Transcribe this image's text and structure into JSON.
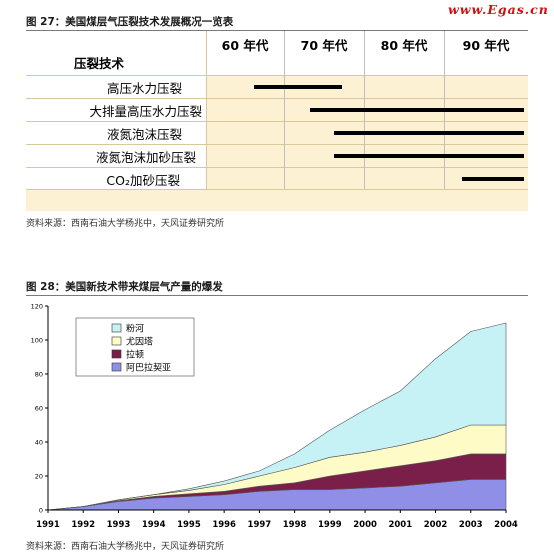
{
  "watermark": "www.Egas.cn",
  "table_figure": {
    "title": "图 27：美国煤层气压裂技术发展概况一览表",
    "column_header": "压裂技术",
    "decades": [
      "60 年代",
      "70 年代",
      "80 年代",
      "90 年代"
    ],
    "rows": [
      {
        "label": "高压水力压裂",
        "start": 1966,
        "end": 1976
      },
      {
        "label": "大排量高压水力压裂",
        "start": 1973,
        "end": 1999
      },
      {
        "label": "液氮泡沫压裂",
        "start": 1976,
        "end": 1999
      },
      {
        "label": "液氮泡沫加砂压裂",
        "start": 1976,
        "end": 1999
      },
      {
        "label": "CO₂加砂压裂",
        "start": 1992,
        "end": 1999
      }
    ],
    "source": "资料来源：西南石油大学杨兆中，天风证券研究所"
  },
  "chart_figure": {
    "title": "图 28：美国新技术带来煤层气产量的爆发",
    "source": "资料来源：西南石油大学杨兆中，天风证券研究所"
  },
  "chart_data": {
    "type": "area",
    "stacked": true,
    "x": [
      1991,
      1992,
      1993,
      1994,
      1995,
      1996,
      1997,
      1998,
      1999,
      2000,
      2001,
      2002,
      2003,
      2004
    ],
    "ylim": [
      0,
      120
    ],
    "yticks": [
      0,
      20,
      40,
      60,
      80,
      100,
      120
    ],
    "legend_position": "top-left",
    "grid": false,
    "series": [
      {
        "name": "阿巴拉契亚",
        "color": "#8f8fe8",
        "values": [
          0,
          2,
          5,
          7,
          8,
          9,
          11,
          12,
          12,
          13,
          14,
          16,
          18,
          18
        ]
      },
      {
        "name": "拉顿",
        "color": "#7a1f4a",
        "values": [
          0,
          0,
          0.5,
          1,
          1.5,
          2,
          3,
          4,
          8,
          10,
          12,
          13,
          15,
          15
        ]
      },
      {
        "name": "尤因塔",
        "color": "#fffbc6",
        "values": [
          0,
          0,
          0.5,
          1,
          2,
          4,
          6,
          9,
          11,
          11,
          12,
          14,
          17,
          17
        ]
      },
      {
        "name": "粉河",
        "color": "#c6f1f5",
        "values": [
          0,
          0,
          0,
          0,
          1,
          2,
          3,
          8,
          16,
          25,
          32,
          46,
          55,
          60
        ]
      }
    ]
  }
}
